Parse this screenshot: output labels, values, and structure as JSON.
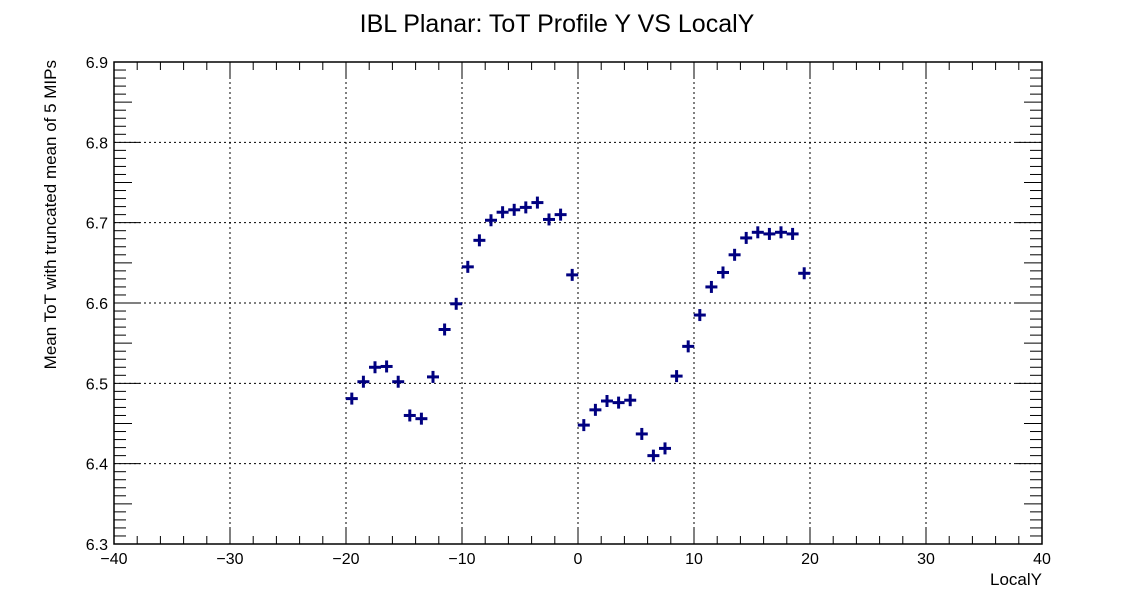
{
  "chart_data": {
    "type": "scatter",
    "title": "IBL Planar: ToT Profile Y VS LocalY",
    "xlabel": "LocalY",
    "ylabel": "Mean ToT with truncated mean of 5 MIPs",
    "xlim": [
      -40,
      40
    ],
    "ylim": [
      6.3,
      6.9
    ],
    "x_ticks": [
      "−40",
      "−30",
      "−20",
      "−10",
      "0",
      "10",
      "20",
      "30",
      "40"
    ],
    "y_ticks": [
      "6.3",
      "6.4",
      "6.5",
      "6.6",
      "6.7",
      "6.8",
      "6.9"
    ],
    "grid": true,
    "marker_color": "#000080",
    "series": [
      {
        "x": [
          -19.5,
          -18.5,
          -17.5,
          -16.5,
          -15.5,
          -14.5,
          -13.5,
          -12.5,
          -11.5,
          -10.5,
          -9.5,
          -8.5,
          -7.5,
          -6.5,
          -5.5,
          -4.5,
          -3.5,
          -2.5,
          -1.5,
          -0.5,
          0.5,
          1.5,
          2.5,
          3.5,
          4.5,
          5.5,
          6.5,
          7.5,
          8.5,
          9.5,
          10.5,
          11.5,
          12.5,
          13.5,
          14.5,
          15.5,
          16.5,
          17.5,
          18.5,
          19.5
        ],
        "y": [
          6.481,
          6.502,
          6.52,
          6.521,
          6.502,
          6.46,
          6.456,
          6.508,
          6.567,
          6.599,
          6.645,
          6.678,
          6.703,
          6.713,
          6.716,
          6.719,
          6.725,
          6.704,
          6.71,
          6.635,
          6.448,
          6.467,
          6.478,
          6.476,
          6.479,
          6.437,
          6.41,
          6.419,
          6.509,
          6.546,
          6.585,
          6.62,
          6.638,
          6.66,
          6.681,
          6.688,
          6.686,
          6.688,
          6.686,
          6.637
        ]
      }
    ]
  }
}
